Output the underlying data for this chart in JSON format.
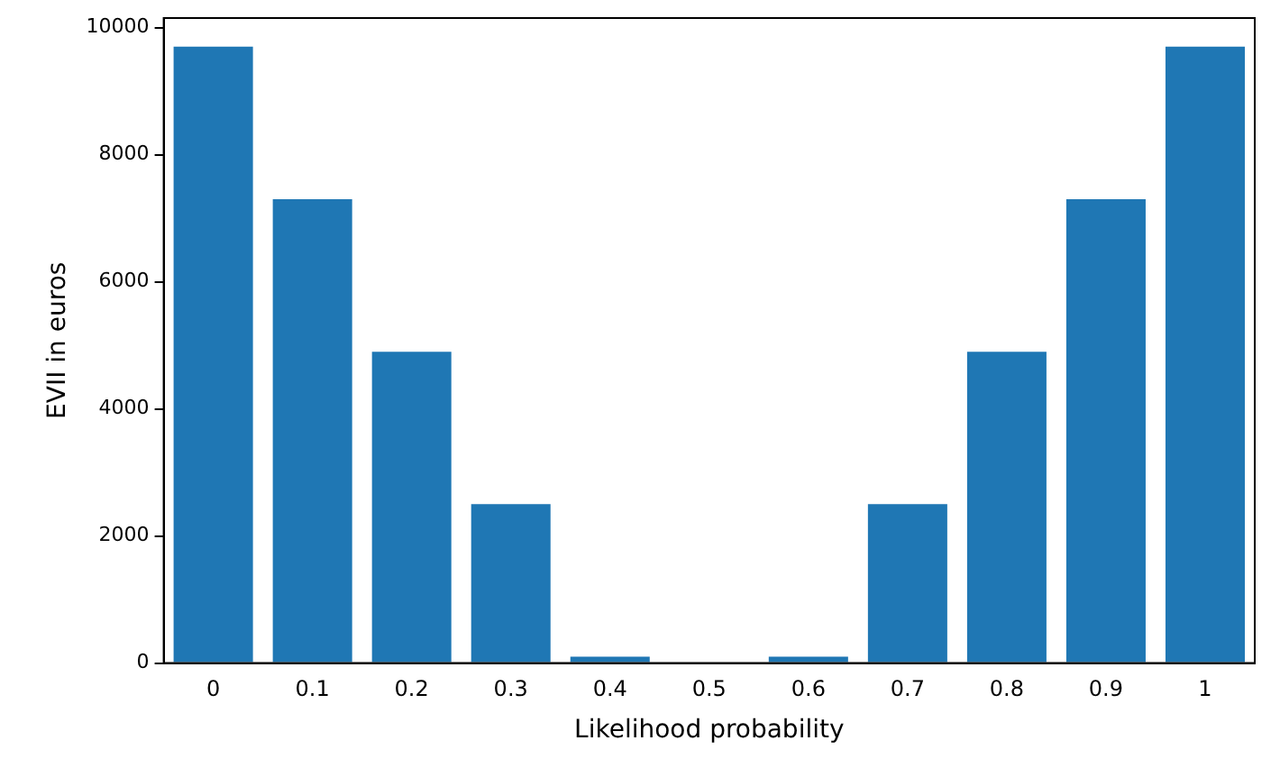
{
  "chart_data": {
    "type": "bar",
    "xlabel": "Likelihood probability",
    "ylabel": "EVII in euros",
    "categories": [
      "0",
      "0.1",
      "0.2",
      "0.3",
      "0.4",
      "0.5",
      "0.6",
      "0.7",
      "0.8",
      "0.9",
      "1"
    ],
    "values": [
      9700,
      7300,
      4900,
      2500,
      100,
      0,
      100,
      2500,
      4900,
      7300,
      9700
    ],
    "color": "#1f77b4",
    "ylim": [
      0,
      10150
    ],
    "yticks": [
      0,
      2000,
      4000,
      6000,
      8000,
      10000
    ],
    "grid": false,
    "legend": false
  }
}
